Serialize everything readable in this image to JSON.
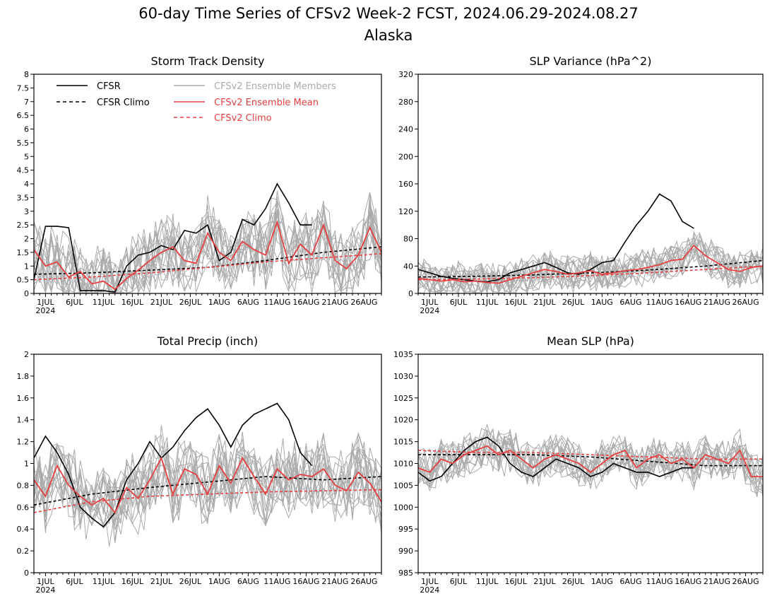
{
  "figure": {
    "title": "60-day Time Series of CFSv2 Week-2 FCST, 2024.06.29-2024.08.27",
    "subtitle": "Alaska",
    "x_tick_labels": [
      "1JUL",
      "6JUL",
      "11JUL",
      "16JUL",
      "21JUL",
      "26JUL",
      "1AUG",
      "6AUG",
      "11AUG",
      "16AUG",
      "21AUG",
      "26AUG"
    ],
    "x_year_label": "2024",
    "legend": {
      "cfsr": "CFSR",
      "cfsr_climo": "CFSR Climo",
      "members": "CFSv2 Ensemble Members",
      "ens_mean": "CFSv2 Ensemble Mean",
      "cfsv2_climo": "CFSv2 Climo"
    },
    "colors": {
      "cfsr": "#000000",
      "members": "#aaaaaa",
      "ens_mean": "#e84040",
      "cfsv2_climo": "#e84040"
    }
  },
  "chart_data": [
    {
      "type": "line",
      "title": "Storm Track Density",
      "x_unit": "day index (0 = 2024-06-29)",
      "ylim": [
        0,
        8
      ],
      "yticks": [
        "0",
        "0.5",
        "1",
        "1.5",
        "2",
        "2.5",
        "3",
        "3.5",
        "4",
        "4.5",
        "5",
        "5.5",
        "6",
        "6.5",
        "7",
        "7.5",
        "8"
      ],
      "series": [
        {
          "name": "CFSR",
          "x": [
            0,
            2,
            4,
            6,
            8,
            10,
            12,
            14,
            16,
            18,
            20,
            22,
            24,
            26,
            28,
            30,
            32,
            34,
            36,
            38,
            40,
            42,
            44,
            46,
            48
          ],
          "values": [
            0.5,
            2.45,
            2.45,
            2.4,
            0.1,
            0.1,
            0.1,
            0.05,
            1.0,
            1.4,
            1.5,
            1.75,
            1.6,
            2.3,
            2.2,
            2.5,
            1.2,
            1.5,
            2.7,
            2.5,
            3.1,
            4.0,
            3.3,
            2.5,
            2.5
          ]
        },
        {
          "name": "CFSR Climo",
          "x": [
            0,
            10,
            20,
            30,
            40,
            50,
            60
          ],
          "values": [
            0.7,
            0.75,
            0.85,
            0.95,
            1.2,
            1.5,
            1.7
          ]
        },
        {
          "name": "CFSv2 Ensemble Mean",
          "x": [
            0,
            2,
            4,
            6,
            8,
            10,
            12,
            14,
            16,
            18,
            20,
            22,
            24,
            26,
            28,
            30,
            32,
            34,
            36,
            38,
            40,
            42,
            44,
            46,
            48,
            50,
            52,
            54,
            56,
            58,
            60
          ],
          "values": [
            1.6,
            1.0,
            1.15,
            0.6,
            0.8,
            0.35,
            0.45,
            0.15,
            0.55,
            0.85,
            1.2,
            1.5,
            1.7,
            1.2,
            1.1,
            2.2,
            1.5,
            1.2,
            1.9,
            1.6,
            1.4,
            2.6,
            1.1,
            1.8,
            1.4,
            2.5,
            1.2,
            0.9,
            1.4,
            2.4,
            1.5
          ]
        },
        {
          "name": "CFSv2 Climo",
          "x": [
            0,
            10,
            20,
            30,
            40,
            50,
            60
          ],
          "values": [
            0.5,
            0.6,
            0.75,
            0.95,
            1.15,
            1.3,
            1.45
          ]
        }
      ]
    },
    {
      "type": "line",
      "title": "SLP Variance (hPa^2)",
      "x_unit": "day index (0 = 2024-06-29)",
      "ylim": [
        0,
        320
      ],
      "yticks": [
        "0",
        "40",
        "80",
        "120",
        "160",
        "200",
        "240",
        "280",
        "320"
      ],
      "series": [
        {
          "name": "CFSR",
          "x": [
            0,
            2,
            4,
            6,
            8,
            10,
            12,
            14,
            16,
            18,
            20,
            22,
            24,
            26,
            28,
            30,
            32,
            34,
            36,
            38,
            40,
            42,
            44,
            46,
            48
          ],
          "values": [
            35,
            30,
            25,
            22,
            20,
            18,
            17,
            20,
            30,
            35,
            40,
            45,
            38,
            30,
            28,
            35,
            45,
            48,
            75,
            100,
            120,
            145,
            135,
            105,
            95
          ]
        },
        {
          "name": "CFSR Climo",
          "x": [
            0,
            10,
            20,
            30,
            40,
            50,
            60
          ],
          "values": [
            24,
            25,
            27,
            30,
            34,
            40,
            48
          ]
        },
        {
          "name": "CFSv2 Ensemble Mean",
          "x": [
            0,
            2,
            4,
            6,
            8,
            10,
            12,
            14,
            16,
            18,
            20,
            22,
            24,
            26,
            28,
            30,
            32,
            34,
            36,
            38,
            40,
            42,
            44,
            46,
            48,
            50,
            52,
            54,
            56,
            58,
            60
          ],
          "values": [
            22,
            20,
            18,
            20,
            17,
            18,
            16,
            15,
            20,
            25,
            30,
            35,
            32,
            28,
            30,
            33,
            28,
            30,
            33,
            35,
            38,
            42,
            48,
            50,
            70,
            55,
            45,
            35,
            32,
            38,
            40
          ]
        },
        {
          "name": "CFSv2 Climo",
          "x": [
            0,
            10,
            20,
            30,
            40,
            50,
            60
          ],
          "values": [
            20,
            21,
            23,
            26,
            30,
            35,
            40
          ]
        }
      ]
    },
    {
      "type": "line",
      "title": "Total Precip (inch)",
      "x_unit": "day index (0 = 2024-06-29)",
      "ylim": [
        0,
        2
      ],
      "yticks": [
        "0",
        "0.2",
        "0.4",
        "0.6",
        "0.8",
        "1",
        "1.2",
        "1.4",
        "1.6",
        "1.8",
        "2"
      ],
      "series": [
        {
          "name": "CFSR",
          "x": [
            0,
            2,
            4,
            6,
            8,
            10,
            12,
            14,
            16,
            18,
            20,
            22,
            24,
            26,
            28,
            30,
            32,
            34,
            36,
            38,
            40,
            42,
            44,
            46,
            48
          ],
          "values": [
            1.05,
            1.25,
            1.1,
            0.9,
            0.6,
            0.5,
            0.42,
            0.55,
            0.85,
            1.0,
            1.2,
            1.05,
            1.15,
            1.3,
            1.42,
            1.5,
            1.35,
            1.15,
            1.35,
            1.45,
            1.5,
            1.55,
            1.4,
            1.1,
            0.98
          ]
        },
        {
          "name": "CFSR Climo",
          "x": [
            0,
            10,
            20,
            30,
            40,
            50,
            60
          ],
          "values": [
            0.62,
            0.72,
            0.78,
            0.83,
            0.88,
            0.85,
            0.88
          ]
        },
        {
          "name": "CFSv2 Ensemble Mean",
          "x": [
            0,
            2,
            4,
            6,
            8,
            10,
            12,
            14,
            16,
            18,
            20,
            22,
            24,
            26,
            28,
            30,
            32,
            34,
            36,
            38,
            40,
            42,
            44,
            46,
            48,
            50,
            52,
            54,
            56,
            58,
            60
          ],
          "values": [
            0.85,
            0.7,
            0.98,
            0.8,
            0.7,
            0.62,
            0.68,
            0.55,
            0.78,
            0.68,
            0.85,
            1.05,
            0.72,
            0.95,
            0.9,
            0.72,
            0.98,
            0.82,
            1.05,
            0.88,
            0.72,
            0.95,
            0.85,
            0.9,
            0.88,
            0.95,
            0.8,
            0.75,
            0.92,
            0.82,
            0.65
          ]
        },
        {
          "name": "CFSv2 Climo",
          "x": [
            0,
            10,
            20,
            30,
            40,
            50,
            60
          ],
          "values": [
            0.55,
            0.65,
            0.7,
            0.72,
            0.74,
            0.75,
            0.76
          ]
        }
      ]
    },
    {
      "type": "line",
      "title": "Mean SLP (hPa)",
      "x_unit": "day index (0 = 2024-06-29)",
      "ylim": [
        985,
        1035
      ],
      "yticks": [
        "985",
        "990",
        "995",
        "1000",
        "1005",
        "1010",
        "1015",
        "1020",
        "1025",
        "1030",
        "1035"
      ],
      "series": [
        {
          "name": "CFSR",
          "x": [
            0,
            2,
            4,
            6,
            8,
            10,
            12,
            14,
            16,
            18,
            20,
            22,
            24,
            26,
            28,
            30,
            32,
            34,
            36,
            38,
            40,
            42,
            44,
            46,
            48
          ],
          "values": [
            1008,
            1006,
            1007,
            1010,
            1013,
            1015,
            1016,
            1014,
            1010,
            1008,
            1007,
            1009,
            1011,
            1010,
            1009,
            1007,
            1008,
            1010,
            1009,
            1008,
            1008,
            1007,
            1008,
            1009,
            1009
          ]
        },
        {
          "name": "CFSR Climo",
          "x": [
            0,
            10,
            20,
            30,
            40,
            50,
            60
          ],
          "values": [
            1012,
            1012,
            1012,
            1011.5,
            1010.5,
            1009.5,
            1009.5
          ]
        },
        {
          "name": "CFSv2 Ensemble Mean",
          "x": [
            0,
            2,
            4,
            6,
            8,
            10,
            12,
            14,
            16,
            18,
            20,
            22,
            24,
            26,
            28,
            30,
            32,
            34,
            36,
            38,
            40,
            42,
            44,
            46,
            48,
            50,
            52,
            54,
            56,
            58,
            60
          ],
          "values": [
            1009,
            1008,
            1011,
            1010,
            1012,
            1013,
            1014,
            1012,
            1013,
            1011,
            1009,
            1011,
            1012,
            1011,
            1010,
            1008,
            1010,
            1012,
            1013,
            1009,
            1011,
            1012,
            1010,
            1011,
            1009,
            1012,
            1011,
            1010,
            1013,
            1007,
            1007
          ]
        },
        {
          "name": "CFSv2 Climo",
          "x": [
            0,
            10,
            20,
            30,
            40,
            50,
            60
          ],
          "values": [
            1013,
            1012.5,
            1012.5,
            1012,
            1011.5,
            1011,
            1011
          ]
        }
      ]
    }
  ]
}
